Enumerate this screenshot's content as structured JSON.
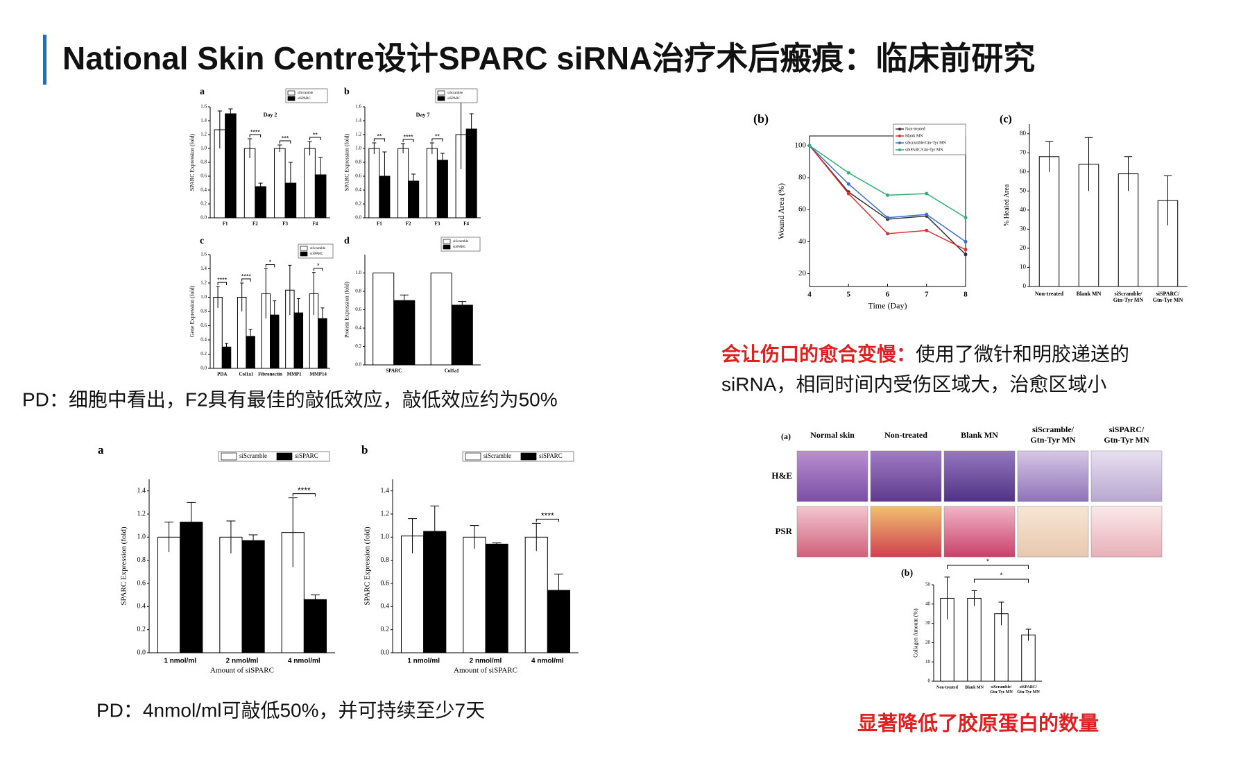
{
  "title": "National Skin Centre设计SPARC siRNA治疗术后瘢痕：临床前研究",
  "captions": {
    "cell_note": "PD：细胞中看出，F2具有最佳的敲低效应，敲低效应约为50%",
    "wound_note_emph": "会让伤口的愈合变慢：",
    "wound_note_body": "使用了微针和明胶递送的siRNA，相同时间内受伤区域大，治愈区域小",
    "dose_note": "PD：4nmol/ml可敲低50%，并可持续至少7天",
    "collagen_note": "显著降低了胶原蛋白的数量"
  },
  "histology": {
    "panel": "(a)",
    "columns": [
      "Normal skin",
      "Non-treated",
      "Blank MN",
      "siScramble/ Gtn-Tyr MN",
      "siSPARC/ Gtn-Tyr MN"
    ],
    "rows": [
      "H&E",
      "PSR"
    ]
  },
  "chart_data": [
    {
      "type": "bar",
      "panel": "a",
      "title": "Day 2",
      "ylabel": "SPARC Expression (fold)",
      "categories": [
        "F1",
        "F2",
        "F3",
        "F4"
      ],
      "series": [
        {
          "name": "siScramble",
          "color": "#ffffff",
          "values": [
            1.27,
            1.0,
            1.0,
            1.0
          ],
          "errors": [
            0.27,
            0.14,
            0.05,
            0.1
          ]
        },
        {
          "name": "siSPARC",
          "color": "#000000",
          "values": [
            1.5,
            0.45,
            0.5,
            0.62
          ],
          "errors": [
            0.07,
            0.05,
            0.3,
            0.25
          ]
        }
      ],
      "sig": [
        null,
        "****",
        "***",
        "**"
      ],
      "ylim": [
        0,
        1.6
      ],
      "yticks": [
        {
          "value": 0,
          "label": "0.0"
        },
        {
          "value": 0.2,
          "label": "0.2"
        },
        {
          "value": 0.4,
          "label": "0.4"
        },
        {
          "value": 0.6,
          "label": "0.6"
        },
        {
          "value": 0.8,
          "label": "0.8"
        },
        {
          "value": 1,
          "label": "1.0"
        },
        {
          "value": 1.2,
          "label": "1.2"
        },
        {
          "value": 1.4,
          "label": "1.4"
        },
        {
          "value": 1.6,
          "label": "1.6"
        }
      ]
    },
    {
      "type": "bar",
      "panel": "b",
      "title": "Day 7",
      "ylabel": "SPARC Expression (fold)",
      "categories": [
        "F1",
        "F2",
        "F3",
        "F4"
      ],
      "series": [
        {
          "name": "siScramble",
          "color": "#ffffff",
          "values": [
            1.0,
            1.0,
            1.0,
            1.2
          ],
          "errors": [
            0.08,
            0.07,
            0.08,
            0.5
          ]
        },
        {
          "name": "siSPARC",
          "color": "#000000",
          "values": [
            0.6,
            0.53,
            0.83,
            1.28
          ],
          "errors": [
            0.35,
            0.1,
            0.1,
            0.22
          ]
        }
      ],
      "sig": [
        "**",
        "****",
        "**",
        null
      ],
      "ylim": [
        0,
        1.6
      ],
      "yticks": [
        {
          "value": 0,
          "label": "0.0"
        },
        {
          "value": 0.2,
          "label": "0.2"
        },
        {
          "value": 0.4,
          "label": "0.4"
        },
        {
          "value": 0.6,
          "label": "0.6"
        },
        {
          "value": 0.8,
          "label": "0.8"
        },
        {
          "value": 1,
          "label": "1.0"
        },
        {
          "value": 1.2,
          "label": "1.2"
        },
        {
          "value": 1.4,
          "label": "1.4"
        },
        {
          "value": 1.6,
          "label": "1.6"
        }
      ]
    },
    {
      "type": "bar",
      "panel": "c",
      "ylabel": "Gene Expression (fold)",
      "categories": [
        "PDA",
        "Col1a1",
        "Fibronectin",
        "MMP1",
        "MMP14"
      ],
      "series": [
        {
          "name": "siScramble",
          "color": "#ffffff",
          "values": [
            1.0,
            1.0,
            1.05,
            1.1,
            1.05
          ],
          "errors": [
            0.15,
            0.2,
            0.35,
            0.35,
            0.3
          ]
        },
        {
          "name": "siSPARC",
          "color": "#000000",
          "values": [
            0.3,
            0.45,
            0.75,
            0.78,
            0.7
          ],
          "errors": [
            0.05,
            0.1,
            0.2,
            0.2,
            0.15
          ]
        }
      ],
      "sig": [
        "****",
        "****",
        "*",
        null,
        "*"
      ],
      "ylim": [
        0,
        1.6
      ],
      "yticks": [
        {
          "value": 0,
          "label": "0.0"
        },
        {
          "value": 0.2,
          "label": "0.2"
        },
        {
          "value": 0.4,
          "label": "0.4"
        },
        {
          "value": 0.6,
          "label": "0.6"
        },
        {
          "value": 0.8,
          "label": "0.8"
        },
        {
          "value": 1,
          "label": "1.0"
        },
        {
          "value": 1.2,
          "label": "1.2"
        },
        {
          "value": 1.4,
          "label": "1.4"
        },
        {
          "value": 1.6,
          "label": "1.6"
        }
      ]
    },
    {
      "type": "bar",
      "panel": "d",
      "ylabel": "Protein Expression (fold)",
      "categories": [
        "SPARC",
        "Col1a1"
      ],
      "series": [
        {
          "name": "siScramble",
          "color": "#ffffff",
          "values": [
            1.0,
            1.0
          ]
        },
        {
          "name": "siSPARC",
          "color": "#000000",
          "values": [
            0.7,
            0.65
          ],
          "errors": [
            0.06,
            0.04
          ]
        }
      ],
      "ylim": [
        0,
        1.2
      ],
      "yticks": [
        {
          "value": 0,
          "label": "0.0"
        },
        {
          "value": 0.2,
          "label": "0.2"
        },
        {
          "value": 0.4,
          "label": "0.4"
        },
        {
          "value": 0.6,
          "label": "0.6"
        },
        {
          "value": 0.8,
          "label": "0.8"
        },
        {
          "value": 1,
          "label": "1.0"
        }
      ]
    },
    {
      "type": "bar",
      "panel": "a",
      "ylabel": "SPARC Expression (fold)",
      "xlabel": "Amount of siSPARC",
      "categories": [
        "1 nmol/ml",
        "2 nmol/ml",
        "4 nmol/ml"
      ],
      "series": [
        {
          "name": "siScramble",
          "color": "#ffffff",
          "values": [
            1.0,
            1.0,
            1.04
          ],
          "errors": [
            0.13,
            0.14,
            0.3
          ]
        },
        {
          "name": "siSPARC",
          "color": "#000000",
          "values": [
            1.13,
            0.97,
            0.46
          ],
          "errors": [
            0.17,
            0.05,
            0.04
          ]
        }
      ],
      "sig": [
        null,
        null,
        "****"
      ],
      "ylim": [
        0,
        1.5
      ],
      "yticks": [
        {
          "value": 0,
          "label": "0.0"
        },
        {
          "value": 0.2,
          "label": "0.2"
        },
        {
          "value": 0.4,
          "label": "0.4"
        },
        {
          "value": 0.6,
          "label": "0.6"
        },
        {
          "value": 0.8,
          "label": "0.8"
        },
        {
          "value": 1,
          "label": "1.0"
        },
        {
          "value": 1.2,
          "label": "1.2"
        },
        {
          "value": 1.4,
          "label": "1.4"
        }
      ]
    },
    {
      "type": "bar",
      "panel": "b",
      "ylabel": "SPARC Expression (fold)",
      "xlabel": "Amount of siSPARC",
      "categories": [
        "1 nmol/ml",
        "2 nmol/ml",
        "4 nmol/ml"
      ],
      "series": [
        {
          "name": "siScramble",
          "color": "#ffffff",
          "values": [
            1.01,
            1.0,
            1.0
          ],
          "errors": [
            0.15,
            0.1,
            0.12
          ]
        },
        {
          "name": "siSPARC",
          "color": "#000000",
          "values": [
            1.05,
            0.94,
            0.54
          ],
          "errors": [
            0.22,
            0.01,
            0.14
          ]
        }
      ],
      "sig": [
        null,
        null,
        "****"
      ],
      "ylim": [
        0,
        1.5
      ],
      "yticks": [
        {
          "value": 0,
          "label": "0.0"
        },
        {
          "value": 0.2,
          "label": "0.2"
        },
        {
          "value": 0.4,
          "label": "0.4"
        },
        {
          "value": 0.6,
          "label": "0.6"
        },
        {
          "value": 0.8,
          "label": "0.8"
        },
        {
          "value": 1,
          "label": "1.0"
        },
        {
          "value": 1.2,
          "label": "1.2"
        },
        {
          "value": 1.4,
          "label": "1.4"
        }
      ]
    },
    {
      "type": "line",
      "panel": "(b)",
      "xlabel": "Time (Day)",
      "ylabel": "Wound Area (%)",
      "x": [
        4,
        5,
        6,
        7,
        8
      ],
      "series": [
        {
          "name": "Non-treated",
          "color": "#333333",
          "values": [
            100,
            71,
            54,
            56,
            32
          ]
        },
        {
          "name": "Blank MN",
          "color": "#e03030",
          "values": [
            100,
            70,
            45,
            47,
            35
          ]
        },
        {
          "name": "siScramble/Gtn-Tyr MN",
          "color": "#3a6fd8",
          "values": [
            100,
            76,
            55,
            57,
            40
          ]
        },
        {
          "name": "siSPARC/Gtn-Tyr MN",
          "color": "#30b070",
          "values": [
            100,
            83,
            69,
            70,
            55
          ]
        }
      ],
      "xlim": [
        4,
        8
      ],
      "xticks": [
        4,
        5,
        6,
        7,
        8
      ],
      "ylim": [
        12,
        106
      ],
      "yticks": [
        20,
        40,
        60,
        80,
        100
      ]
    },
    {
      "type": "bar",
      "panel": "(c)",
      "ylabel": "% Healed Area",
      "categories": [
        "Non-treated",
        "Blank MN",
        "siScramble/ Gtn-Tyr MN",
        "siSPARC/ Gtn-Tyr MN"
      ],
      "values": [
        68,
        64,
        59,
        45
      ],
      "errors": [
        8,
        14,
        9,
        13
      ],
      "color": "#ffffff",
      "ylim": [
        0,
        85
      ],
      "yticks": [
        0,
        10,
        20,
        30,
        40,
        50,
        60,
        70,
        80
      ]
    },
    {
      "type": "bar",
      "panel": "(b)",
      "ylabel": "Collagen Amount (%)",
      "categories": [
        "Non-treated",
        "Blank MN",
        "siScramble/ Gtn-Tyr MN",
        "siSPARC/ Gtn-Tyr MN"
      ],
      "values": [
        43,
        43,
        35,
        24
      ],
      "errors": [
        11,
        4,
        6,
        3
      ],
      "color": "#ffffff",
      "annotations": [
        "*",
        "*"
      ],
      "ylim": [
        0,
        50
      ],
      "yticks": [
        0,
        10,
        20,
        30,
        40,
        50
      ]
    }
  ]
}
